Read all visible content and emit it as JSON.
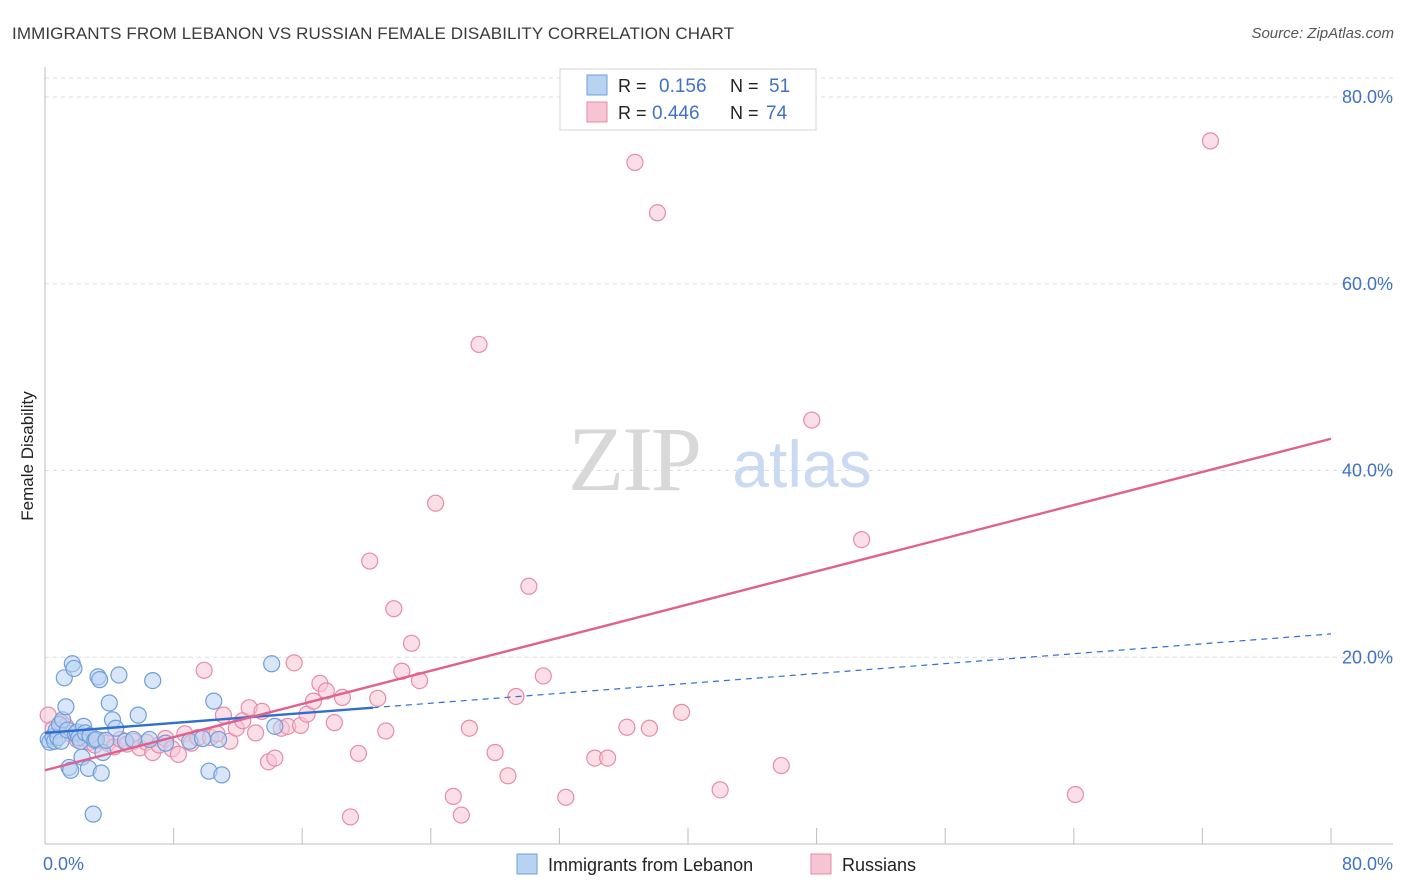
{
  "header": {
    "title": "IMMIGRANTS FROM LEBANON VS RUSSIAN FEMALE DISABILITY CORRELATION CHART",
    "source": "Source: ZipAtlas.com"
  },
  "watermark": {
    "zip": "ZIP",
    "atlas": "atlas"
  },
  "colors": {
    "blue_fill": "#b8d2f2",
    "blue_stroke": "#6e9fda",
    "blue_line": "#2e6fcf",
    "pink_fill": "#f7c4d4",
    "pink_stroke": "#e98aaa",
    "pink_line": "#e0608e",
    "tick_label": "#3f72c7",
    "grid": "#dcdcdc"
  },
  "chart_data": {
    "type": "scatter",
    "xlabel": "",
    "ylabel": "Female Disability",
    "xlim": [
      0,
      80
    ],
    "ylim": [
      0,
      80
    ],
    "x_tick_labels": [
      "0.0%",
      "80.0%"
    ],
    "y_ticks": [
      {
        "value": 20,
        "label": "20.0%"
      },
      {
        "value": 40,
        "label": "40.0%"
      },
      {
        "value": 60,
        "label": "60.0%"
      },
      {
        "value": 80,
        "label": "80.0%"
      }
    ],
    "legend_stats": [
      {
        "series": "Immigrants from Lebanon",
        "r_label": "R =",
        "r": "0.156",
        "n_label": "N =",
        "n": "51",
        "color_key": "blue"
      },
      {
        "series": "Russians",
        "r_label": "R =",
        "r": "0.446",
        "n_label": "N =",
        "n": "74",
        "color_key": "pink"
      }
    ],
    "series": [
      {
        "name": "Immigrants from Lebanon",
        "color_key": "blue",
        "trend": {
          "x0": 0,
          "y0": 11.9,
          "x1": 20.4,
          "y1": 14.6,
          "dash_x1": 80,
          "dash_y1": 22.5
        },
        "points": [
          [
            0.2,
            11.2
          ],
          [
            0.3,
            10.9
          ],
          [
            0.5,
            11.5
          ],
          [
            0.6,
            11.0
          ],
          [
            0.7,
            12.2
          ],
          [
            0.8,
            11.4
          ],
          [
            0.9,
            12.8
          ],
          [
            1.0,
            11.0
          ],
          [
            1.1,
            13.3
          ],
          [
            1.2,
            17.8
          ],
          [
            1.3,
            14.7
          ],
          [
            1.4,
            12.2
          ],
          [
            1.5,
            8.2
          ],
          [
            1.6,
            7.9
          ],
          [
            1.7,
            19.3
          ],
          [
            1.8,
            18.8
          ],
          [
            1.9,
            11.8
          ],
          [
            2.0,
            12.0
          ],
          [
            2.1,
            11.4
          ],
          [
            2.2,
            11.0
          ],
          [
            2.3,
            9.3
          ],
          [
            2.4,
            12.6
          ],
          [
            2.5,
            11.9
          ],
          [
            2.7,
            8.1
          ],
          [
            2.8,
            11.6
          ],
          [
            3.0,
            3.2
          ],
          [
            3.1,
            11.1
          ],
          [
            3.2,
            11.2
          ],
          [
            3.3,
            17.9
          ],
          [
            3.4,
            17.6
          ],
          [
            3.5,
            7.6
          ],
          [
            3.6,
            9.8
          ],
          [
            3.8,
            11.1
          ],
          [
            4.0,
            15.1
          ],
          [
            4.2,
            13.3
          ],
          [
            4.4,
            12.4
          ],
          [
            4.6,
            18.1
          ],
          [
            5.0,
            11.0
          ],
          [
            5.5,
            11.2
          ],
          [
            5.8,
            13.8
          ],
          [
            6.5,
            11.2
          ],
          [
            6.7,
            17.5
          ],
          [
            7.5,
            10.8
          ],
          [
            9.0,
            11.0
          ],
          [
            9.8,
            11.3
          ],
          [
            10.2,
            7.8
          ],
          [
            10.5,
            15.3
          ],
          [
            10.8,
            11.2
          ],
          [
            11.0,
            7.4
          ],
          [
            14.1,
            19.3
          ],
          [
            14.3,
            12.6
          ]
        ]
      },
      {
        "name": "Russians",
        "color_key": "pink",
        "trend": {
          "x0": 0,
          "y0": 7.9,
          "x1": 80,
          "y1": 43.4
        },
        "points": [
          [
            0.2,
            13.8
          ],
          [
            0.5,
            12.3
          ],
          [
            1.0,
            13.0
          ],
          [
            1.3,
            12.6
          ],
          [
            1.6,
            11.8
          ],
          [
            2.0,
            11.2
          ],
          [
            2.4,
            11.4
          ],
          [
            2.8,
            10.9
          ],
          [
            3.1,
            10.6
          ],
          [
            3.5,
            11.1
          ],
          [
            3.9,
            10.8
          ],
          [
            4.3,
            10.4
          ],
          [
            4.7,
            11.2
          ],
          [
            5.1,
            10.7
          ],
          [
            5.5,
            11.0
          ],
          [
            5.9,
            10.3
          ],
          [
            6.3,
            10.9
          ],
          [
            6.7,
            9.8
          ],
          [
            7.1,
            10.6
          ],
          [
            7.5,
            11.3
          ],
          [
            7.9,
            10.2
          ],
          [
            8.3,
            9.6
          ],
          [
            8.7,
            11.8
          ],
          [
            9.1,
            10.8
          ],
          [
            9.5,
            11.4
          ],
          [
            9.9,
            18.6
          ],
          [
            10.3,
            11.4
          ],
          [
            10.7,
            11.8
          ],
          [
            11.1,
            13.8
          ],
          [
            11.5,
            11.0
          ],
          [
            11.9,
            12.4
          ],
          [
            12.3,
            13.2
          ],
          [
            12.7,
            14.6
          ],
          [
            13.1,
            11.9
          ],
          [
            13.5,
            14.2
          ],
          [
            13.9,
            8.8
          ],
          [
            14.3,
            9.2
          ],
          [
            14.7,
            12.4
          ],
          [
            15.1,
            12.6
          ],
          [
            15.5,
            19.4
          ],
          [
            15.9,
            12.7
          ],
          [
            16.3,
            13.9
          ],
          [
            16.7,
            15.3
          ],
          [
            17.1,
            17.2
          ],
          [
            17.5,
            16.4
          ],
          [
            18.0,
            13.0
          ],
          [
            18.5,
            15.7
          ],
          [
            19.0,
            2.9
          ],
          [
            19.5,
            9.7
          ],
          [
            20.2,
            30.3
          ],
          [
            20.7,
            15.6
          ],
          [
            21.2,
            12.1
          ],
          [
            21.7,
            25.2
          ],
          [
            22.2,
            18.5
          ],
          [
            22.8,
            21.5
          ],
          [
            23.3,
            17.5
          ],
          [
            24.3,
            36.5
          ],
          [
            25.4,
            5.1
          ],
          [
            25.9,
            3.1
          ],
          [
            26.4,
            12.4
          ],
          [
            27.0,
            53.5
          ],
          [
            28.0,
            9.8
          ],
          [
            28.8,
            7.3
          ],
          [
            29.3,
            15.8
          ],
          [
            30.1,
            27.6
          ],
          [
            31.0,
            18.0
          ],
          [
            32.4,
            5.0
          ],
          [
            34.2,
            9.2
          ],
          [
            35.0,
            9.2
          ],
          [
            36.2,
            12.5
          ],
          [
            36.7,
            73.0
          ],
          [
            37.6,
            12.4
          ],
          [
            38.1,
            67.6
          ],
          [
            39.6,
            14.1
          ]
        ],
        "more_points": [
          [
            42.0,
            5.8
          ],
          [
            45.8,
            8.4
          ],
          [
            47.7,
            45.4
          ],
          [
            50.8,
            32.6
          ],
          [
            64.1,
            5.3
          ],
          [
            72.5,
            75.3
          ]
        ]
      }
    ],
    "legend_position": "bottom-center"
  }
}
